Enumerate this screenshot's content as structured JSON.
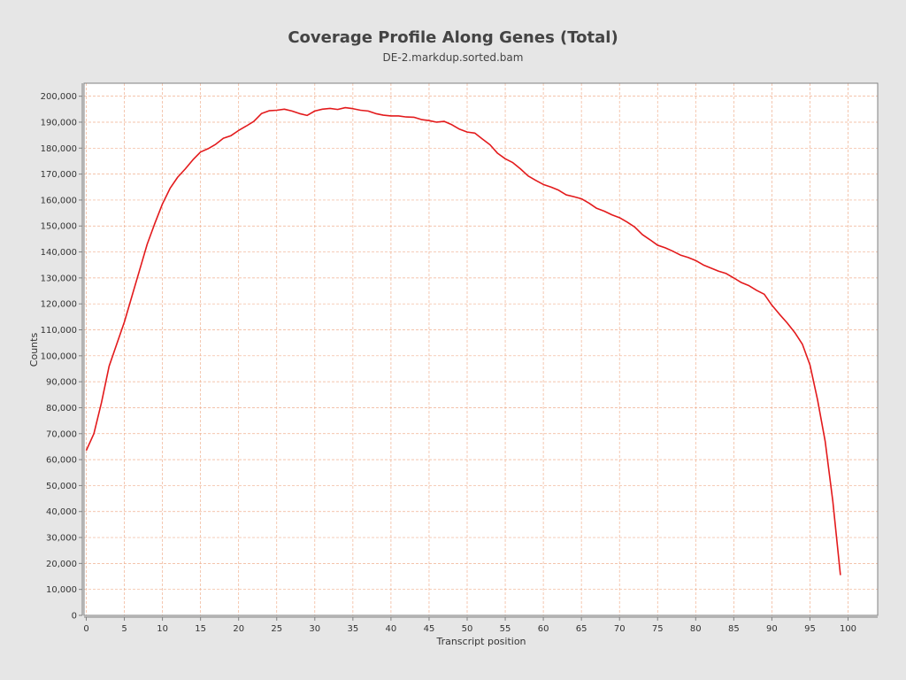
{
  "chart_data": {
    "type": "line",
    "title": "Coverage Profile Along Genes (Total)",
    "subtitle": "DE-2.markdup.sorted.bam",
    "xlabel": "Transcript position",
    "ylabel": "Counts",
    "xlim": [
      0,
      104
    ],
    "ylim": [
      0,
      205000
    ],
    "x_ticks": [
      0,
      5,
      10,
      15,
      20,
      25,
      30,
      35,
      40,
      45,
      50,
      55,
      60,
      65,
      70,
      75,
      80,
      85,
      90,
      95,
      100
    ],
    "x_tick_labels": [
      "0",
      "5",
      "10",
      "15",
      "20",
      "25",
      "30",
      "35",
      "40",
      "45",
      "50",
      "55",
      "60",
      "65",
      "70",
      "75",
      "80",
      "85",
      "90",
      "95",
      "100"
    ],
    "y_ticks": [
      0,
      10000,
      20000,
      30000,
      40000,
      50000,
      60000,
      70000,
      80000,
      90000,
      100000,
      110000,
      120000,
      130000,
      140000,
      150000,
      160000,
      170000,
      180000,
      190000,
      200000
    ],
    "y_tick_labels": [
      "0",
      "10,000",
      "20,000",
      "30,000",
      "40,000",
      "50,000",
      "60,000",
      "70,000",
      "80,000",
      "90,000",
      "100,000",
      "110,000",
      "120,000",
      "130,000",
      "140,000",
      "150,000",
      "160,000",
      "170,000",
      "180,000",
      "190,000",
      "200,000"
    ],
    "grid": true,
    "colors": {
      "background": "#e6e6e6",
      "plot_background": "#ffffff",
      "grid": "#f0b090",
      "line": "#e31a1c",
      "axis": "#808080"
    },
    "series": [
      {
        "x": [
          0,
          1,
          2,
          3,
          4,
          5,
          6,
          7,
          8,
          9,
          10,
          11,
          12,
          13,
          14,
          15,
          16,
          17,
          18,
          19,
          20,
          21,
          22,
          23,
          24,
          25,
          26,
          27,
          28,
          29,
          30,
          31,
          32,
          33,
          34,
          35,
          36,
          37,
          38,
          39,
          40,
          41,
          42,
          43,
          44,
          45,
          46,
          47,
          48,
          49,
          50,
          51,
          52,
          53,
          54,
          55,
          56,
          57,
          58,
          59,
          60,
          61,
          62,
          63,
          64,
          65,
          66,
          67,
          68,
          69,
          70,
          71,
          72,
          73,
          74,
          75,
          76,
          77,
          78,
          79,
          80,
          81,
          82,
          83,
          84,
          85,
          86,
          87,
          88,
          89,
          90,
          91,
          92,
          93,
          94,
          95,
          96,
          97,
          98,
          99
        ],
        "values": [
          63500,
          70000,
          82000,
          96000,
          104500,
          113000,
          123000,
          133000,
          143000,
          151000,
          158500,
          164500,
          168800,
          172000,
          175500,
          178500,
          179800,
          181500,
          183800,
          184800,
          186800,
          188500,
          190300,
          193300,
          194400,
          194600,
          195000,
          194300,
          193300,
          192600,
          194300,
          195000,
          195300,
          194900,
          195600,
          195200,
          194600,
          194300,
          193300,
          192700,
          192400,
          192400,
          192000,
          191900,
          191000,
          190600,
          190000,
          190300,
          189000,
          187300,
          186200,
          185800,
          183500,
          181300,
          178000,
          175900,
          174400,
          172000,
          169300,
          167600,
          166000,
          165000,
          163800,
          162000,
          161300,
          160500,
          158800,
          156800,
          155700,
          154300,
          153200,
          151500,
          149600,
          146700,
          144700,
          142600,
          141600,
          140300,
          138800,
          137900,
          136700,
          135000,
          133800,
          132600,
          131700,
          130000,
          128200,
          127000,
          125200,
          123700,
          119500,
          116000,
          112700,
          109000,
          104500,
          96500,
          83000,
          67000,
          44000,
          15500
        ]
      }
    ]
  }
}
